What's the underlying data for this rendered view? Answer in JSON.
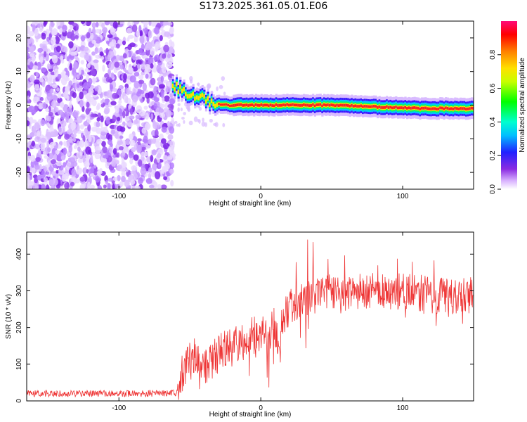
{
  "title": "S173.2025.361.05.01.E06",
  "colors": {
    "line": "#ee3333",
    "axis": "#000000"
  },
  "chart_data": [
    {
      "id": "spectrogram",
      "type": "heatmap",
      "title": "S173.2025.361.05.01.E06",
      "xlabel": "Height of straight line (km)",
      "ylabel": "Frequency (Hz)",
      "xlim": [
        -165,
        150
      ],
      "ylim": [
        -25,
        25
      ],
      "xticks": [
        -100,
        0,
        100
      ],
      "yticks": [
        -20,
        -10,
        0,
        10,
        20
      ],
      "colorbar": {
        "label": "Normalized spectral amplitude",
        "range": [
          0,
          1
        ],
        "ticks": [
          "0.0",
          "0.2",
          "0.4",
          "0.6",
          "0.8"
        ],
        "colormap": "rainbow (white to violet to blue to cyan to green to yellow to orange to red to magenta)"
      },
      "noise_region_km": [
        -165,
        -62
      ],
      "signal_track": [
        {
          "x": -62,
          "f": 6
        },
        {
          "x": -55,
          "f": 4
        },
        {
          "x": -48,
          "f": 2.5
        },
        {
          "x": -40,
          "f": 2
        },
        {
          "x": -33,
          "f": 0.5
        },
        {
          "x": -25,
          "f": 0
        },
        {
          "x": 0,
          "f": 0
        },
        {
          "x": 50,
          "f": 0
        },
        {
          "x": 80,
          "f": -0.5
        },
        {
          "x": 115,
          "f": -1
        },
        {
          "x": 150,
          "f": -1
        }
      ]
    },
    {
      "id": "snr",
      "type": "line",
      "xlabel": "Height of straight line (km)",
      "ylabel": "SNR (10 * v/v)",
      "xlim": [
        -165,
        150
      ],
      "ylim": [
        0,
        460
      ],
      "xticks": [
        -100,
        0,
        100
      ],
      "yticks": [
        0,
        100,
        200,
        300,
        400
      ],
      "series": [
        {
          "name": "SNR",
          "x": [
            -165,
            -140,
            -110,
            -80,
            -60,
            -55,
            -50,
            -45,
            -40,
            -35,
            -30,
            -25,
            -20,
            -15,
            -10,
            -5,
            0,
            5,
            10,
            13,
            15,
            20,
            25,
            30,
            40,
            50,
            60,
            70,
            80,
            90,
            100,
            110,
            120,
            130,
            140,
            150
          ],
          "y": [
            20,
            20,
            20,
            20,
            22,
            80,
            110,
            130,
            80,
            100,
            130,
            150,
            140,
            160,
            170,
            175,
            180,
            190,
            200,
            110,
            220,
            250,
            270,
            280,
            290,
            300,
            295,
            300,
            300,
            295,
            300,
            295,
            290,
            285,
            285,
            290
          ]
        }
      ]
    }
  ]
}
